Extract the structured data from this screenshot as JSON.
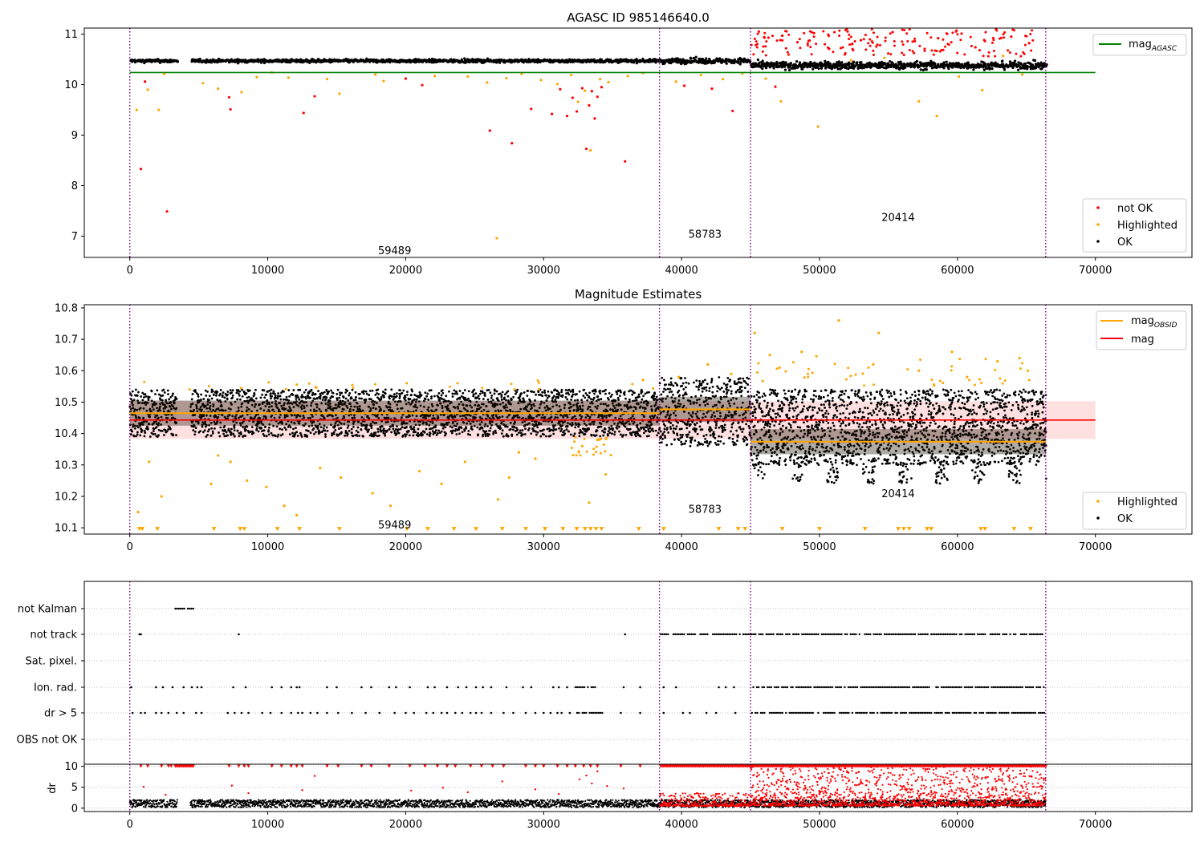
{
  "chart_data": [
    {
      "type": "scatter",
      "title": "AGASC ID 985146640.0",
      "xlim": [
        -3300,
        77000
      ],
      "ylim": [
        6.58,
        11.12
      ],
      "xticks": [
        0,
        10000,
        20000,
        30000,
        40000,
        50000,
        60000,
        70000
      ],
      "xtick_labels": [
        "0",
        "10000",
        "20000",
        "30000",
        "40000",
        "50000",
        "60000",
        "70000"
      ],
      "yticks": [
        7,
        8,
        9,
        10,
        11
      ],
      "ytick_labels": [
        "7",
        "8",
        "9",
        "10",
        "11"
      ],
      "obs_boundaries": [
        0,
        38400,
        45000,
        66400
      ],
      "obsid_labels": [
        {
          "text": "59489",
          "x": 19200,
          "y": 6.72
        },
        {
          "text": "58783",
          "x": 41700,
          "y": 7.05
        },
        {
          "text": "20414",
          "x": 55700,
          "y": 7.38
        }
      ],
      "lines": [
        {
          "name": "mag_AGASC",
          "label": "mag",
          "label_sub": "AGASC",
          "color": "#008000",
          "x": [
            0,
            70000
          ],
          "y": [
            10.24,
            10.24
          ]
        }
      ],
      "bands": [
        {
          "x0": 0,
          "x1": 38400,
          "center": 10.47,
          "spread": 0.03,
          "color": "#000000"
        },
        {
          "x0": 38400,
          "x1": 45000,
          "center": 10.47,
          "spread": 0.05,
          "color": "#000000"
        },
        {
          "x0": 45000,
          "x1": 66400,
          "center": 10.38,
          "spread": 0.07,
          "color": "#000000"
        }
      ],
      "gaps": [
        [
          3400,
          4400
        ]
      ],
      "points": {
        "not_ok": {
          "color": "#ff0000",
          "x": [
            800,
            1100,
            2700,
            7200,
            7300,
            12600,
            13400,
            20000,
            21200,
            26100,
            27700,
            29100,
            30600,
            31200,
            31700,
            32100,
            32400,
            32800,
            33100,
            33300,
            33500,
            33700,
            33900,
            34200,
            35900,
            40200,
            42200,
            43700,
            45600,
            46300,
            46800,
            47300,
            48400,
            49600,
            50700,
            51900,
            53000,
            54200,
            55300,
            56900,
            58600,
            60300,
            61300,
            62800,
            63900,
            65200
          ],
          "y": [
            8.33,
            10.06,
            7.49,
            9.75,
            9.51,
            9.44,
            9.77,
            10.12,
            9.99,
            9.09,
            8.84,
            9.52,
            9.42,
            9.91,
            9.38,
            9.74,
            9.47,
            9.93,
            8.73,
            9.59,
            9.87,
            9.33,
            9.76,
            9.95,
            8.48,
            9.98,
            9.92,
            9.48,
            11.05,
            10.93,
            9.96,
            10.97,
            10.84,
            11.02,
            10.71,
            11.08,
            10.88,
            10.79,
            11.04,
            10.86,
            10.92,
            11.01,
            10.74,
            11.1,
            10.95,
            10.82
          ]
        },
        "highlighted": {
          "color": "#ffa500",
          "x": [
            500,
            1300,
            2100,
            2500,
            5300,
            6400,
            8100,
            9200,
            10300,
            11500,
            14300,
            15200,
            17800,
            18400,
            22100,
            24500,
            25900,
            26600,
            27300,
            28400,
            29800,
            31000,
            32000,
            32500,
            33000,
            33400,
            34100,
            34700,
            36100,
            37200,
            39600,
            41400,
            43000,
            44400,
            46100,
            47200,
            49900,
            52300,
            54700,
            57200,
            58500,
            60100,
            61800,
            63300,
            64700
          ],
          "y": [
            9.5,
            9.9,
            9.5,
            10.21,
            10.03,
            9.92,
            9.85,
            10.15,
            10.24,
            10.14,
            10.11,
            9.82,
            10.2,
            10.07,
            10.17,
            10.16,
            10.04,
            6.96,
            10.13,
            10.21,
            10.09,
            10.01,
            10.19,
            9.66,
            9.88,
            8.7,
            10.11,
            10.05,
            10.17,
            10.23,
            10.06,
            10.19,
            10.11,
            10.22,
            10.12,
            9.67,
            9.17,
            10.48,
            10.53,
            9.67,
            9.38,
            10.16,
            9.89,
            10.57,
            10.2
          ]
        }
      },
      "legend_top": [
        {
          "label": "mag",
          "sub": "AGASC",
          "color": "#008000"
        }
      ],
      "legend_bottom": [
        {
          "label": "not OK",
          "color": "#ff0000"
        },
        {
          "label": "Highlighted",
          "color": "#ffa500"
        },
        {
          "label": "OK",
          "color": "#000000"
        }
      ]
    },
    {
      "type": "scatter",
      "title": "Magnitude Estimates",
      "xlim": [
        -3300,
        77000
      ],
      "ylim": [
        10.08,
        10.81
      ],
      "xticks": [
        0,
        10000,
        20000,
        30000,
        40000,
        50000,
        60000,
        70000
      ],
      "xtick_labels": [
        "0",
        "10000",
        "20000",
        "30000",
        "40000",
        "50000",
        "60000",
        "70000"
      ],
      "yticks": [
        10.1,
        10.2,
        10.3,
        10.4,
        10.5,
        10.6,
        10.7,
        10.8
      ],
      "ytick_labels": [
        "10.1",
        "10.2",
        "10.3",
        "10.4",
        "10.5",
        "10.6",
        "10.7",
        "10.8"
      ],
      "obs_boundaries": [
        0,
        38400,
        45000,
        66400
      ],
      "obsid_labels": [
        {
          "text": "59489",
          "x": 19200,
          "y": 10.11
        },
        {
          "text": "58783",
          "x": 41700,
          "y": 10.16
        },
        {
          "text": "20414",
          "x": 55700,
          "y": 10.21
        }
      ],
      "mag": 10.443,
      "mag_band": [
        10.383,
        10.503
      ],
      "mag_xrange": [
        0,
        70000
      ],
      "mag_obsid": [
        {
          "x0": 0,
          "x1": 38400,
          "y": 10.465
        },
        {
          "x0": 38400,
          "x1": 45000,
          "y": 10.477
        },
        {
          "x0": 45000,
          "x1": 66400,
          "y": 10.374
        }
      ],
      "clouds": [
        {
          "x0": 0,
          "x1": 38400,
          "lo": 10.39,
          "hi": 10.54
        },
        {
          "x0": 38400,
          "x1": 45000,
          "lo": 10.36,
          "hi": 10.58
        },
        {
          "x0": 45000,
          "x1": 66400,
          "lo": 10.24,
          "hi": 10.54
        }
      ],
      "gaps": [
        [
          3400,
          4400
        ]
      ],
      "points": {
        "highlighted": {
          "color": "#ffa500",
          "x": [
            600,
            1400,
            2300,
            5900,
            6400,
            7300,
            8500,
            9900,
            11200,
            12100,
            13800,
            15300,
            17600,
            18900,
            21000,
            22600,
            24300,
            26700,
            27500,
            28200,
            29400,
            32800,
            33300,
            33900,
            34500,
            37200,
            39800,
            41900,
            43600,
            45300,
            46400,
            47100,
            48700,
            51400,
            53900,
            54300,
            57200,
            59600,
            60700,
            62900,
            64500,
            65100
          ],
          "y": [
            10.15,
            10.31,
            10.2,
            10.24,
            10.33,
            10.31,
            10.25,
            10.23,
            10.17,
            10.14,
            10.29,
            10.26,
            10.21,
            10.17,
            10.28,
            10.24,
            10.31,
            10.19,
            10.26,
            10.34,
            10.32,
            10.36,
            10.18,
            10.38,
            10.27,
            10.57,
            10.58,
            10.62,
            10.59,
            10.72,
            10.65,
            10.61,
            10.66,
            10.76,
            10.62,
            10.72,
            10.6,
            10.66,
            10.58,
            10.63,
            10.64,
            10.6
          ]
        },
        "highlighted_floor": {
          "color": "#ffa500",
          "y": 10.09,
          "x": [
            700,
            900,
            2000,
            6100,
            8000,
            8300,
            10700,
            12300,
            15200,
            20100,
            21600,
            23500,
            25100,
            27000,
            28700,
            30100,
            31400,
            32400,
            33000,
            33400,
            33800,
            34200,
            36900,
            38700,
            42700,
            44100,
            44600,
            47300,
            50000,
            53300,
            55700,
            56100,
            56500,
            57800,
            58100,
            61700,
            62000,
            64100,
            65300
          ]
        }
      },
      "legend_top": [
        {
          "label": "mag",
          "sub": "OBSID",
          "color": "#ffa500"
        },
        {
          "label": "mag",
          "sub": "",
          "color": "#ff0000"
        }
      ],
      "legend_bottom": [
        {
          "label": "Highlighted",
          "color": "#ffa500"
        },
        {
          "label": "OK",
          "color": "#000000"
        }
      ]
    },
    {
      "type": "scatter",
      "xlim": [
        -3300,
        77000
      ],
      "xticks": [
        0,
        10000,
        20000,
        30000,
        40000,
        50000,
        60000,
        70000
      ],
      "xtick_labels": [
        "0",
        "10000",
        "20000",
        "30000",
        "40000",
        "50000",
        "60000",
        "70000"
      ],
      "obs_boundaries": [
        0,
        38400,
        45000,
        66400
      ],
      "flag_rows": [
        "not Kalman",
        "not track",
        "Sat. pixel.",
        "Ion. rad.",
        "dr > 5",
        "OBS not OK"
      ],
      "flag_points": {
        "not Kalman": {
          "segments": [
            [
              3300,
              4600
            ]
          ],
          "x": []
        },
        "not track": {
          "segments": [
            [
              38500,
              45000
            ],
            [
              45100,
              66400
            ]
          ],
          "x": [
            700,
            800,
            7900,
            35900
          ]
        },
        "Sat. pixel.": {
          "segments": [],
          "x": []
        },
        "Ion. rad.": {
          "segments": [
            [
              32300,
              33800
            ],
            [
              45200,
              66400
            ]
          ],
          "x": [
            100,
            1900,
            2400,
            3100,
            3900,
            4500,
            4900,
            5200,
            7500,
            8400,
            10300,
            11000,
            11700,
            12100,
            12300,
            14300,
            15000,
            16800,
            17500,
            18800,
            19300,
            20300,
            21600,
            22100,
            23000,
            23800,
            24400,
            25100,
            25600,
            26200,
            27300,
            28500,
            29100,
            30700,
            31100,
            31700,
            35800,
            37000,
            38700,
            39600,
            42700,
            43200,
            43800
          ]
        },
        "dr > 5": {
          "segments": [
            [
              32300,
              34300
            ],
            [
              45100,
              66400
            ]
          ],
          "x": [
            200,
            800,
            1100,
            1900,
            2300,
            2800,
            3400,
            3900,
            4800,
            5200,
            7100,
            7600,
            8100,
            8600,
            9600,
            10200,
            11000,
            11700,
            12200,
            12500,
            13100,
            13600,
            14300,
            15100,
            16100,
            17100,
            18100,
            19200,
            20000,
            20600,
            21500,
            22000,
            22600,
            23000,
            23600,
            24100,
            24700,
            25100,
            25500,
            26200,
            27100,
            27800,
            28700,
            29400,
            30000,
            30500,
            31000,
            31300,
            31900,
            35600,
            37000,
            38700,
            40100,
            40600,
            41800,
            42500,
            43900
          ]
        },
        "OBS not OK": {
          "segments": [],
          "x": []
        }
      }
    },
    {
      "type": "scatter",
      "ylabel": "dr",
      "xlim": [
        -3300,
        77000
      ],
      "ylim": [
        -0.8,
        10.5
      ],
      "xticks": [
        0,
        10000,
        20000,
        30000,
        40000,
        50000,
        60000,
        70000
      ],
      "xtick_labels": [
        "0",
        "10000",
        "20000",
        "30000",
        "40000",
        "50000",
        "60000",
        "70000"
      ],
      "yticks": [
        0,
        5,
        10
      ],
      "ytick_labels": [
        "0",
        "5",
        "10"
      ],
      "obs_boundaries": [
        0,
        38400,
        45000,
        66400
      ],
      "dr_ok": {
        "color": "#000000",
        "lo": 0.2,
        "hi": 2.0
      },
      "dr_not_ok": {
        "color": "#ff0000",
        "segments": [
          [
            38400,
            45000,
            0.5,
            3.6
          ],
          [
            45000,
            66400,
            0.6,
            10.0
          ]
        ]
      },
      "dr_capped": {
        "color": "#ff0000",
        "y": 10.0,
        "segments": [
          [
            3300,
            4600
          ],
          [
            38500,
            66400
          ]
        ],
        "x": [
          800,
          1300,
          2300,
          2800,
          3000,
          7200,
          7900,
          8300,
          8600,
          10300,
          11000,
          11700,
          12100,
          12500,
          14300,
          15100,
          16800,
          17500,
          18800,
          20300,
          21400,
          22300,
          23000,
          23600,
          24700,
          25500,
          26300,
          27100,
          28700,
          29400,
          30000,
          31000,
          31700,
          32300,
          32900,
          33400,
          33900,
          35600,
          37000
        ]
      },
      "dr_red_scatter": {
        "x": [
          1000,
          2600,
          7400,
          8600,
          12500,
          13400,
          20400,
          22700,
          24500,
          27000,
          29400,
          31100,
          32600,
          33100,
          33500,
          33900,
          34600,
          35800
        ],
        "y": [
          5.1,
          3.2,
          5.4,
          3.6,
          4.3,
          7.7,
          4.2,
          4.9,
          3.8,
          6.4,
          4.5,
          3.4,
          6.9,
          7.8,
          5.9,
          8.8,
          5.3,
          4.7
        ]
      }
    }
  ]
}
